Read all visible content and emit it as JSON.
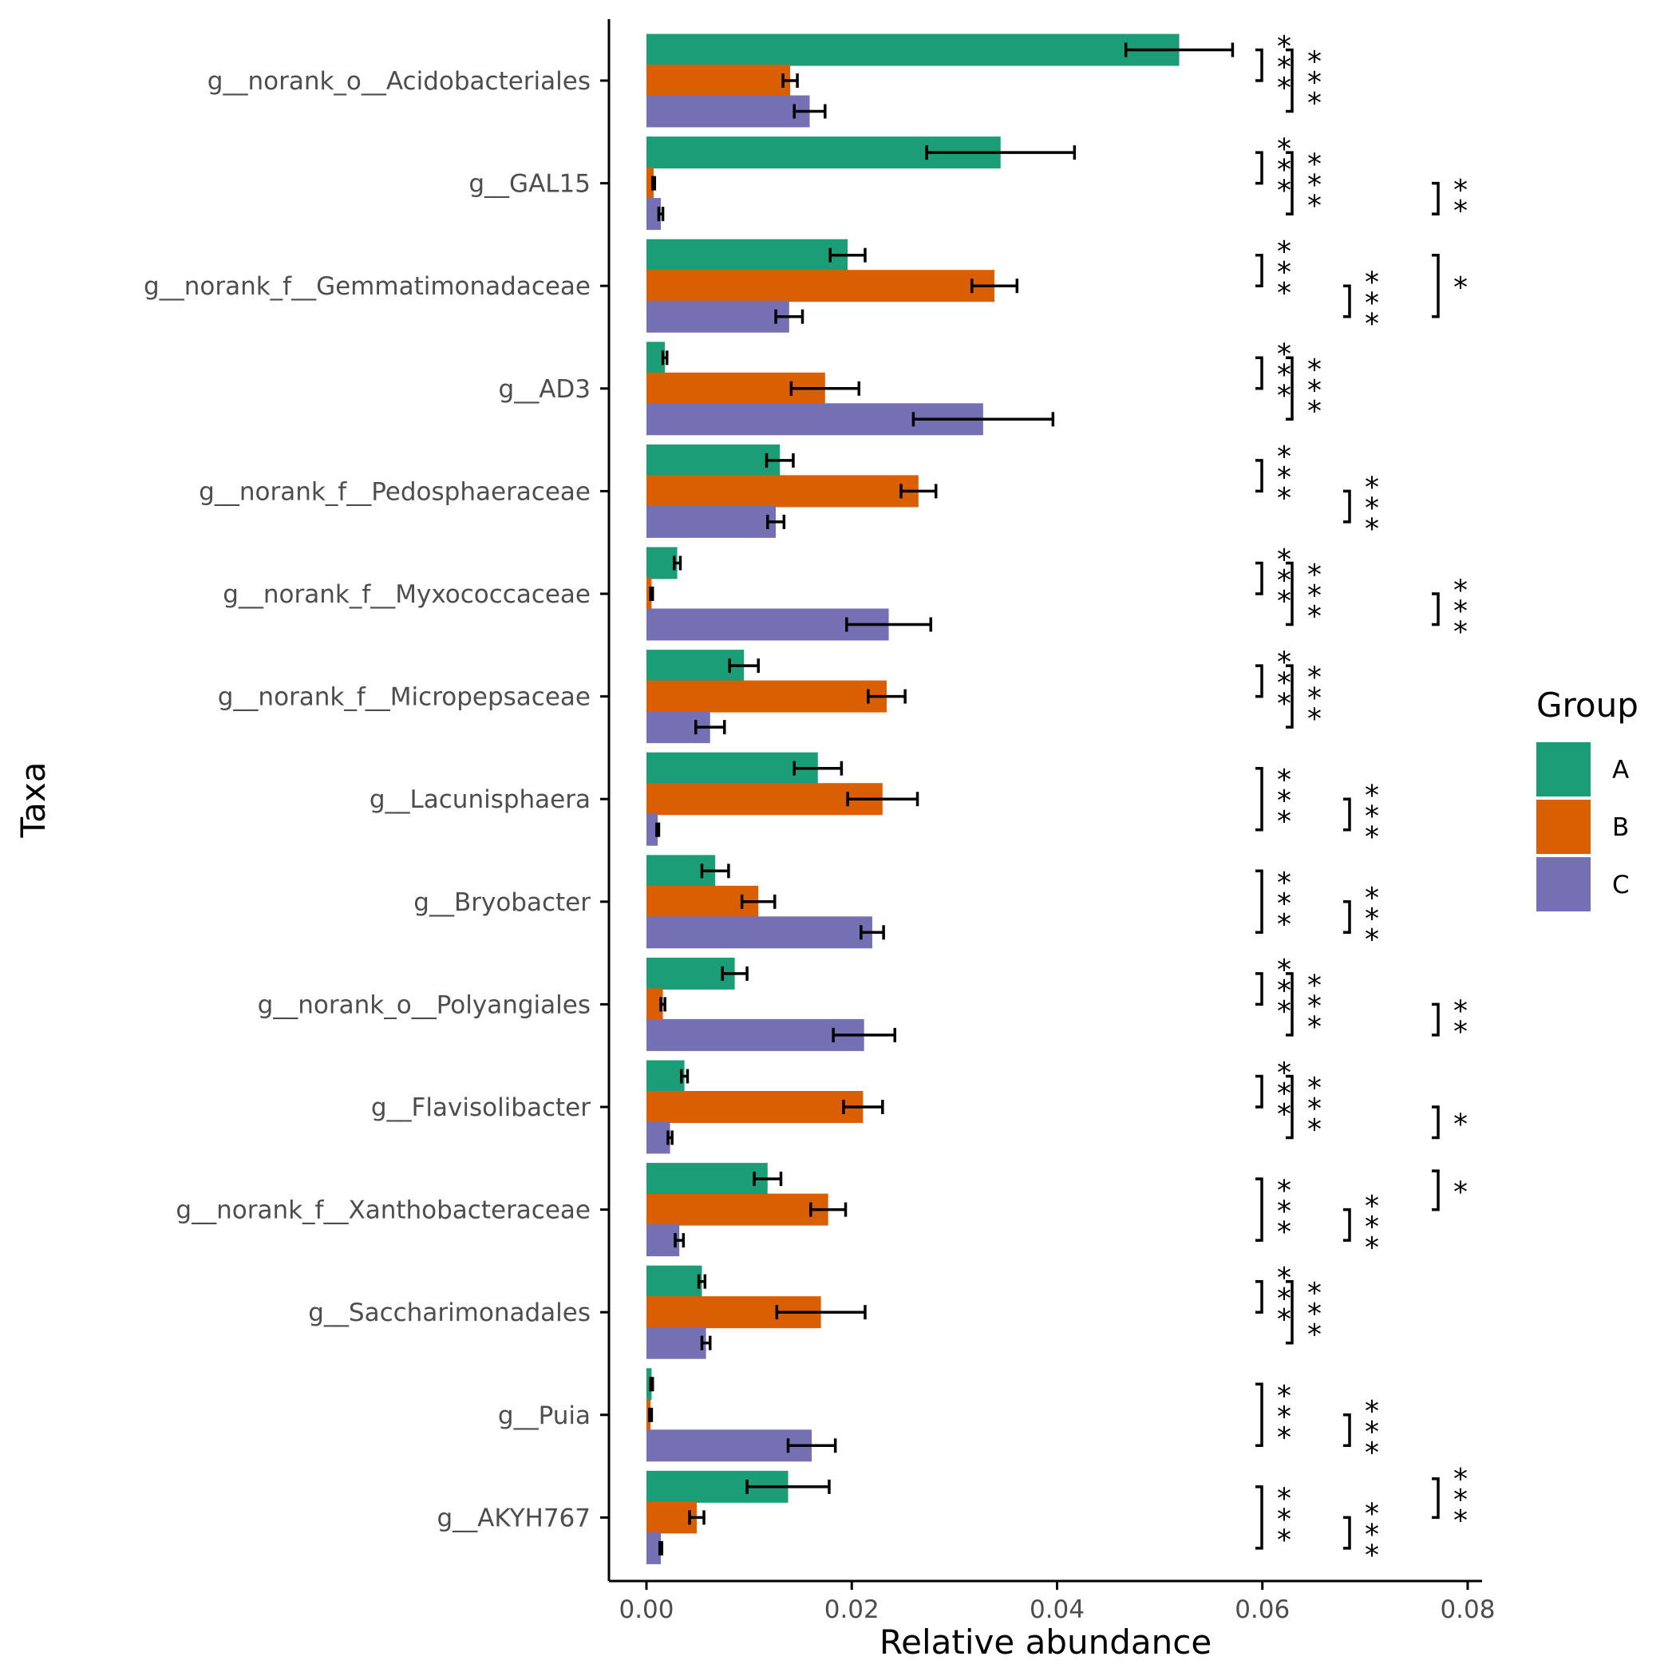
{
  "chart_data": {
    "type": "bar",
    "orientation": "horizontal",
    "title": "",
    "xlabel": "Relative abundance",
    "ylabel": "Taxa",
    "xlim": [
      -0.0047,
      0.082
    ],
    "xticks": [
      0.0,
      0.02,
      0.04,
      0.06,
      0.08
    ],
    "xtick_labels": [
      "0.00",
      "0.02",
      "0.04",
      "0.06",
      "0.08"
    ],
    "grid": false,
    "legend": {
      "title": "Group",
      "position": "right"
    },
    "categories": [
      "g__norank_o__Acidobacteriales",
      "g__GAL15",
      "g__norank_f__Gemmatimonadaceae",
      "g__AD3",
      "g__norank_f__Pedosphaeraceae",
      "g__norank_f__Myxococcaceae",
      "g__norank_f__Micropepsaceae",
      "g__Lacunisphaera",
      "g__Bryobacter",
      "g__norank_o__Polyangiales",
      "g__Flavisolibacter",
      "g__norank_f__Xanthobacteraceae",
      "g__Saccharimonadales",
      "g__Puia",
      "g__AKYH767"
    ],
    "series": [
      {
        "name": "A",
        "color": "#1b9e77",
        "values": [
          0.0519,
          0.0345,
          0.0196,
          0.0018,
          0.013,
          0.003,
          0.0095,
          0.0167,
          0.0067,
          0.0086,
          0.0037,
          0.0118,
          0.0054,
          0.0005,
          0.0138
        ],
        "errors": [
          0.0052,
          0.0072,
          0.0017,
          0.0002,
          0.0013,
          0.0003,
          0.0014,
          0.0023,
          0.0013,
          0.0012,
          0.0003,
          0.0013,
          0.0003,
          0.0001,
          0.004
        ]
      },
      {
        "name": "B",
        "color": "#d95f02",
        "values": [
          0.014,
          0.0007,
          0.0339,
          0.0174,
          0.0265,
          0.0005,
          0.0234,
          0.023,
          0.0109,
          0.0016,
          0.0211,
          0.0177,
          0.017,
          0.0004,
          0.0049
        ],
        "errors": [
          0.0007,
          0.0001,
          0.0022,
          0.0033,
          0.0017,
          0.0001,
          0.0018,
          0.0034,
          0.0016,
          0.0002,
          0.0019,
          0.0017,
          0.0043,
          0.0001,
          0.0007
        ]
      },
      {
        "name": "C",
        "color": "#7570b3",
        "values": [
          0.0159,
          0.0014,
          0.0139,
          0.0328,
          0.0126,
          0.0236,
          0.0062,
          0.0011,
          0.022,
          0.0212,
          0.0023,
          0.0032,
          0.0058,
          0.0161,
          0.0014
        ],
        "errors": [
          0.0015,
          0.0002,
          0.0013,
          0.0068,
          0.0008,
          0.0041,
          0.0014,
          0.0001,
          0.0011,
          0.003,
          0.0002,
          0.0004,
          0.0004,
          0.0023,
          0.0001
        ]
      }
    ],
    "significance": [
      {
        "category": 0,
        "comparisons": [
          {
            "pair": "A-B",
            "label": "***"
          },
          {
            "pair": "A-C",
            "label": "***"
          }
        ]
      },
      {
        "category": 1,
        "comparisons": [
          {
            "pair": "A-B",
            "label": "***"
          },
          {
            "pair": "A-C",
            "label": "***"
          },
          {
            "pair": "B-C",
            "label": "**"
          }
        ]
      },
      {
        "category": 2,
        "comparisons": [
          {
            "pair": "A-B",
            "label": "***"
          },
          {
            "pair": "B-C",
            "label": "***"
          },
          {
            "pair": "A-C",
            "label": "*"
          }
        ]
      },
      {
        "category": 3,
        "comparisons": [
          {
            "pair": "A-B",
            "label": "***"
          },
          {
            "pair": "A-C",
            "label": "***"
          }
        ]
      },
      {
        "category": 4,
        "comparisons": [
          {
            "pair": "A-B",
            "label": "***"
          },
          {
            "pair": "B-C",
            "label": "***"
          }
        ]
      },
      {
        "category": 5,
        "comparisons": [
          {
            "pair": "A-B",
            "label": "***"
          },
          {
            "pair": "A-C",
            "label": "***"
          },
          {
            "pair": "B-C",
            "label": "***"
          }
        ]
      },
      {
        "category": 6,
        "comparisons": [
          {
            "pair": "A-B",
            "label": "***"
          },
          {
            "pair": "A-C",
            "label": "***"
          }
        ]
      },
      {
        "category": 7,
        "comparisons": [
          {
            "pair": "A-C",
            "label": "***"
          },
          {
            "pair": "B-C",
            "label": "***"
          }
        ]
      },
      {
        "category": 8,
        "comparisons": [
          {
            "pair": "A-C",
            "label": "***"
          },
          {
            "pair": "B-C",
            "label": "***"
          }
        ]
      },
      {
        "category": 9,
        "comparisons": [
          {
            "pair": "A-B",
            "label": "***"
          },
          {
            "pair": "A-C",
            "label": "***"
          },
          {
            "pair": "B-C",
            "label": "**"
          }
        ]
      },
      {
        "category": 10,
        "comparisons": [
          {
            "pair": "A-B",
            "label": "***"
          },
          {
            "pair": "A-C",
            "label": "***"
          },
          {
            "pair": "B-C",
            "label": "*"
          }
        ]
      },
      {
        "category": 11,
        "comparisons": [
          {
            "pair": "A-C",
            "label": "***"
          },
          {
            "pair": "B-C",
            "label": "***"
          },
          {
            "pair": "A-B",
            "label": "*"
          }
        ]
      },
      {
        "category": 12,
        "comparisons": [
          {
            "pair": "A-B",
            "label": "***"
          },
          {
            "pair": "A-C",
            "label": "***"
          }
        ]
      },
      {
        "category": 13,
        "comparisons": [
          {
            "pair": "A-C",
            "label": "***"
          },
          {
            "pair": "B-C",
            "label": "***"
          }
        ]
      },
      {
        "category": 14,
        "comparisons": [
          {
            "pair": "A-C",
            "label": "***"
          },
          {
            "pair": "B-C",
            "label": "***"
          },
          {
            "pair": "A-B",
            "label": "***"
          }
        ]
      }
    ]
  }
}
